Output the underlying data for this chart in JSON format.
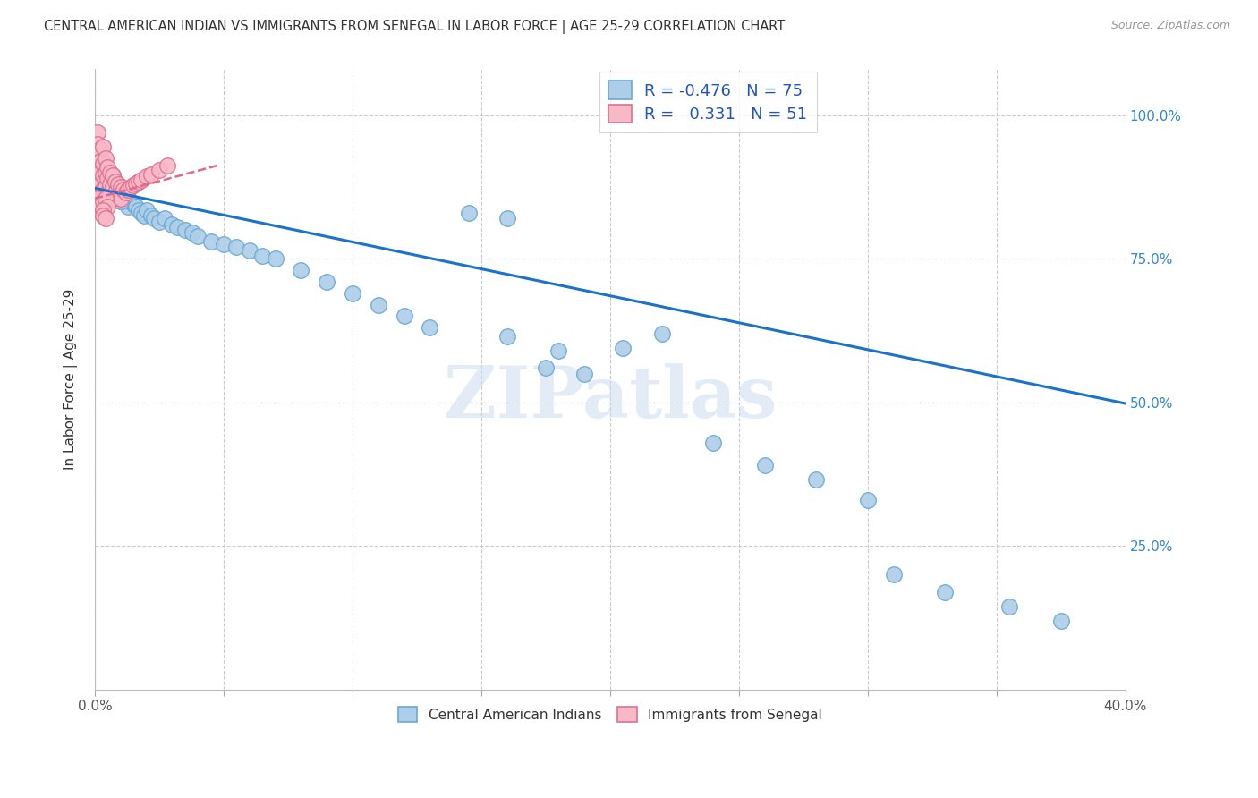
{
  "title": "CENTRAL AMERICAN INDIAN VS IMMIGRANTS FROM SENEGAL IN LABOR FORCE | AGE 25-29 CORRELATION CHART",
  "source": "Source: ZipAtlas.com",
  "ylabel": "In Labor Force | Age 25-29",
  "xlim": [
    0.0,
    0.4
  ],
  "ylim": [
    0.0,
    1.08
  ],
  "blue_color": "#aecde8",
  "blue_edge_color": "#6aaad4",
  "pink_color": "#f7b8c8",
  "pink_edge_color": "#e07090",
  "blue_line_color": "#1a72cc",
  "pink_line_color": "#e06888",
  "legend_R_blue": "-0.476",
  "legend_N_blue": "75",
  "legend_R_pink": "0.331",
  "legend_N_pink": "51",
  "legend_label_blue": "Central American Indians",
  "legend_label_pink": "Immigrants from Senegal",
  "watermark_text": "ZIPatlas",
  "blue_line_x0": 0.0,
  "blue_line_y0": 0.873,
  "blue_line_x1": 0.4,
  "blue_line_y1": 0.498,
  "pink_line_x0": 0.0,
  "pink_line_y0": 0.855,
  "pink_line_x1": 0.048,
  "pink_line_y1": 0.913,
  "blue_x": [
    0.001,
    0.001,
    0.002,
    0.002,
    0.003,
    0.003,
    0.003,
    0.004,
    0.004,
    0.004,
    0.005,
    0.005,
    0.005,
    0.006,
    0.006,
    0.007,
    0.007,
    0.007,
    0.008,
    0.008,
    0.009,
    0.009,
    0.01,
    0.01,
    0.011,
    0.012,
    0.013,
    0.013,
    0.014,
    0.015,
    0.016,
    0.017,
    0.018,
    0.019,
    0.02,
    0.022,
    0.023,
    0.025,
    0.027,
    0.03,
    0.032,
    0.035,
    0.038,
    0.04,
    0.045,
    0.05,
    0.055,
    0.06,
    0.065,
    0.07,
    0.08,
    0.09,
    0.1,
    0.11,
    0.12,
    0.13,
    0.145,
    0.16,
    0.175,
    0.19,
    0.205,
    0.22,
    0.24,
    0.26,
    0.28,
    0.3,
    0.16,
    0.18,
    0.31,
    0.33,
    0.355,
    0.375,
    0.007,
    0.008,
    0.01
  ],
  "blue_y": [
    0.88,
    0.86,
    0.875,
    0.855,
    0.895,
    0.92,
    0.875,
    0.89,
    0.865,
    0.85,
    0.885,
    0.87,
    0.855,
    0.88,
    0.865,
    0.895,
    0.875,
    0.855,
    0.88,
    0.86,
    0.875,
    0.855,
    0.87,
    0.85,
    0.865,
    0.86,
    0.855,
    0.84,
    0.85,
    0.845,
    0.84,
    0.835,
    0.83,
    0.825,
    0.835,
    0.825,
    0.82,
    0.815,
    0.82,
    0.81,
    0.805,
    0.8,
    0.795,
    0.79,
    0.78,
    0.775,
    0.77,
    0.765,
    0.755,
    0.75,
    0.73,
    0.71,
    0.69,
    0.67,
    0.65,
    0.63,
    0.83,
    0.82,
    0.56,
    0.55,
    0.595,
    0.62,
    0.43,
    0.39,
    0.365,
    0.33,
    0.615,
    0.59,
    0.2,
    0.17,
    0.145,
    0.12,
    0.875,
    0.86,
    0.85
  ],
  "pink_x": [
    0.001,
    0.001,
    0.001,
    0.001,
    0.002,
    0.002,
    0.002,
    0.002,
    0.002,
    0.003,
    0.003,
    0.003,
    0.003,
    0.004,
    0.004,
    0.004,
    0.005,
    0.005,
    0.005,
    0.006,
    0.006,
    0.006,
    0.007,
    0.007,
    0.007,
    0.008,
    0.008,
    0.009,
    0.009,
    0.01,
    0.01,
    0.011,
    0.012,
    0.013,
    0.014,
    0.015,
    0.016,
    0.017,
    0.018,
    0.02,
    0.022,
    0.025,
    0.028,
    0.001,
    0.002,
    0.003,
    0.004,
    0.005,
    0.003,
    0.003,
    0.004
  ],
  "pink_y": [
    0.97,
    0.95,
    0.93,
    0.89,
    0.94,
    0.92,
    0.9,
    0.88,
    0.86,
    0.945,
    0.915,
    0.895,
    0.87,
    0.925,
    0.9,
    0.875,
    0.91,
    0.89,
    0.865,
    0.9,
    0.88,
    0.86,
    0.895,
    0.875,
    0.855,
    0.885,
    0.865,
    0.88,
    0.86,
    0.875,
    0.855,
    0.87,
    0.865,
    0.87,
    0.875,
    0.878,
    0.882,
    0.885,
    0.888,
    0.893,
    0.897,
    0.905,
    0.912,
    0.855,
    0.845,
    0.85,
    0.855,
    0.84,
    0.835,
    0.825,
    0.82
  ]
}
